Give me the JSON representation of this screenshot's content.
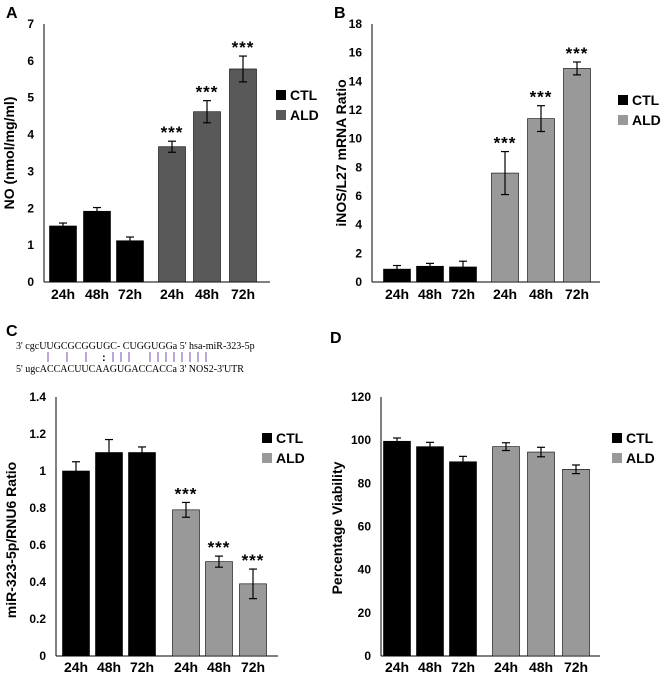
{
  "colors": {
    "ctl": "#000000",
    "ald_dark": "#595959",
    "ald_light": "#999999",
    "error": "#000000"
  },
  "chart_data": [
    {
      "panel": "A",
      "type": "bar",
      "ylabel": "NO (nmol/mg/ml)",
      "ylim": [
        0,
        7
      ],
      "yticks": [
        "0",
        "1",
        "2",
        "3",
        "4",
        "5",
        "6",
        "7"
      ],
      "categories": [
        "24h",
        "48h",
        "72h",
        "24h",
        "48h",
        "72h"
      ],
      "groups": [
        "CTL",
        "CTL",
        "CTL",
        "ALD",
        "ALD",
        "ALD"
      ],
      "values": [
        1.52,
        1.92,
        1.12,
        3.67,
        4.62,
        5.78
      ],
      "errors": [
        0.08,
        0.1,
        0.1,
        0.15,
        0.3,
        0.35
      ],
      "annotations": [
        "",
        "",
        "",
        "***",
        "***",
        "***"
      ],
      "legend": [
        "CTL",
        "ALD"
      ]
    },
    {
      "panel": "B",
      "type": "bar",
      "ylabel": "iNOS/L27 mRNA Ratio",
      "ylim": [
        0,
        18
      ],
      "yticks": [
        "0",
        "2",
        "4",
        "6",
        "8",
        "10",
        "12",
        "14",
        "16",
        "18"
      ],
      "categories": [
        "24h",
        "48h",
        "72h",
        "24h",
        "48h",
        "72h"
      ],
      "groups": [
        "CTL",
        "CTL",
        "CTL",
        "ALD",
        "ALD",
        "ALD"
      ],
      "values": [
        0.9,
        1.1,
        1.05,
        7.6,
        11.4,
        14.9
      ],
      "errors": [
        0.25,
        0.2,
        0.4,
        1.5,
        0.9,
        0.45
      ],
      "annotations": [
        "",
        "",
        "",
        "***",
        "***",
        "***"
      ],
      "legend": [
        "CTL",
        "ALD"
      ]
    },
    {
      "panel": "C",
      "type": "bar",
      "ylabel": "miR-323-5p/RNU6 Ratio",
      "ylim": [
        0,
        1.4
      ],
      "yticks": [
        "0",
        "0.2",
        "0.4",
        "0.6",
        "0.8",
        "1",
        "1.2",
        "1.4"
      ],
      "categories": [
        "24h",
        "48h",
        "72h",
        "24h",
        "48h",
        "72h"
      ],
      "groups": [
        "CTL",
        "CTL",
        "CTL",
        "ALD",
        "ALD",
        "ALD"
      ],
      "values": [
        1.0,
        1.1,
        1.1,
        0.79,
        0.51,
        0.39
      ],
      "errors": [
        0.05,
        0.07,
        0.03,
        0.04,
        0.03,
        0.08
      ],
      "annotations": [
        "",
        "",
        "",
        "***",
        "***",
        "***"
      ],
      "legend": [
        "CTL",
        "ALD"
      ]
    },
    {
      "panel": "D",
      "type": "bar",
      "ylabel": "Percentage Viability",
      "ylim": [
        0,
        120
      ],
      "yticks": [
        "0",
        "20",
        "40",
        "60",
        "80",
        "100",
        "120"
      ],
      "categories": [
        "24h",
        "48h",
        "72h",
        "24h",
        "48h",
        "72h"
      ],
      "groups": [
        "CTL",
        "CTL",
        "CTL",
        "ALD",
        "ALD",
        "ALD"
      ],
      "values": [
        99.5,
        97,
        90,
        97,
        94.5,
        86.5
      ],
      "errors": [
        1.5,
        2,
        2.5,
        1.8,
        2.2,
        2.0
      ],
      "annotations": [
        "",
        "",
        "",
        "",
        "",
        ""
      ],
      "legend": [
        "CTL",
        "ALD"
      ]
    }
  ],
  "sequence": {
    "line1_prefix": "3' cgc",
    "line1_core": "UUGCGCGGUGC- CUGGUGGa",
    "line1_suffix": " 5' hsa-miR-323-5p",
    "line2_prefix": "5' ugc",
    "line2_core": "ACCACUUCAAGUGACCACCa",
    "line2_suffix": " 3' NOS2-3'UTR"
  }
}
